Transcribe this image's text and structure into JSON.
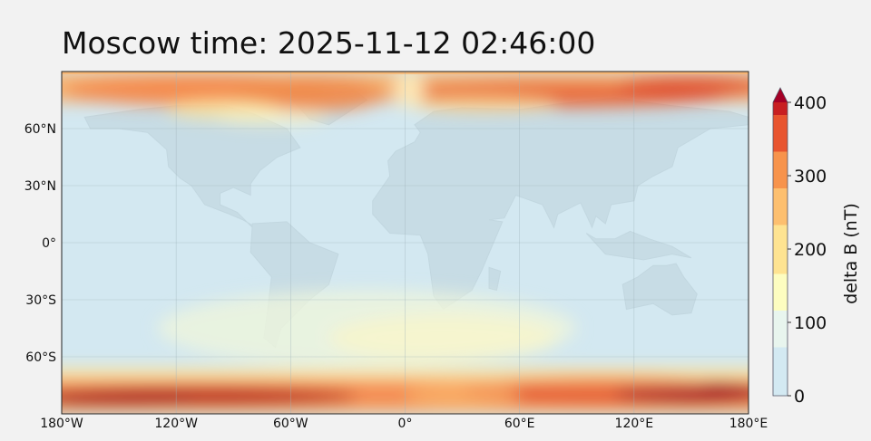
{
  "title": "Moscow time: 2025-11-12 02:46:00",
  "chart_data": {
    "type": "heatmap",
    "title": "Moscow time: 2025-11-12 02:46:00",
    "projection": "plate carree",
    "xlim": [
      -180,
      180
    ],
    "ylim": [
      -90,
      90
    ],
    "grid": true,
    "xticks": [
      {
        "value": -180,
        "label": "180°W"
      },
      {
        "value": -120,
        "label": "120°W"
      },
      {
        "value": -60,
        "label": "60°W"
      },
      {
        "value": 0,
        "label": "0°"
      },
      {
        "value": 60,
        "label": "60°E"
      },
      {
        "value": 120,
        "label": "120°E"
      },
      {
        "value": 180,
        "label": "180°E"
      }
    ],
    "yticks": [
      {
        "value": 60,
        "label": "60°N"
      },
      {
        "value": 30,
        "label": "30°N"
      },
      {
        "value": 0,
        "label": "0°"
      },
      {
        "value": -30,
        "label": "30°S"
      },
      {
        "value": -60,
        "label": "60°S"
      }
    ],
    "colorbar": {
      "label": "delta B (nT)",
      "range": [
        0,
        400
      ],
      "extend": "max",
      "placement": "right",
      "ticks": [
        {
          "value": 0,
          "label": "0"
        },
        {
          "value": 100,
          "label": "100"
        },
        {
          "value": 200,
          "label": "200"
        },
        {
          "value": 300,
          "label": "300"
        },
        {
          "value": 400,
          "label": "400"
        }
      ],
      "colors": [
        "#d3e9f2",
        "#e8f5ee",
        "#fdfdc0",
        "#fee391",
        "#fdbf6f",
        "#f7934c",
        "#e8542f",
        "#c81f22",
        "#a50026"
      ]
    },
    "features": [
      {
        "region": "northern auroral oval",
        "lat_range": [
          68,
          90
        ],
        "peak_nT": 330
      },
      {
        "region": "southern auroral oval",
        "lat_range": [
          -90,
          -70
        ],
        "peak_nT": 420
      }
    ]
  }
}
